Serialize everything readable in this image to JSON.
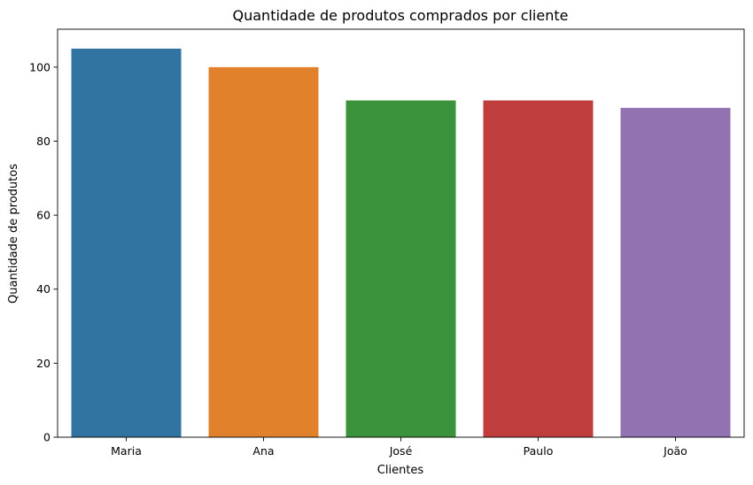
{
  "chart_data": {
    "type": "bar",
    "title": "Quantidade de produtos comprados por cliente",
    "xlabel": "Clientes",
    "ylabel": "Quantidade de produtos",
    "categories": [
      "Maria",
      "Ana",
      "José",
      "Paulo",
      "João"
    ],
    "values": [
      105,
      100,
      91,
      91,
      89
    ],
    "colors": [
      "#3274a1",
      "#e1812c",
      "#3a923a",
      "#c03d3e",
      "#9372b2"
    ],
    "ylim": [
      0,
      110.25
    ],
    "yticks": [
      0,
      20,
      40,
      60,
      80,
      100
    ],
    "grid": false,
    "legend": "none"
  }
}
